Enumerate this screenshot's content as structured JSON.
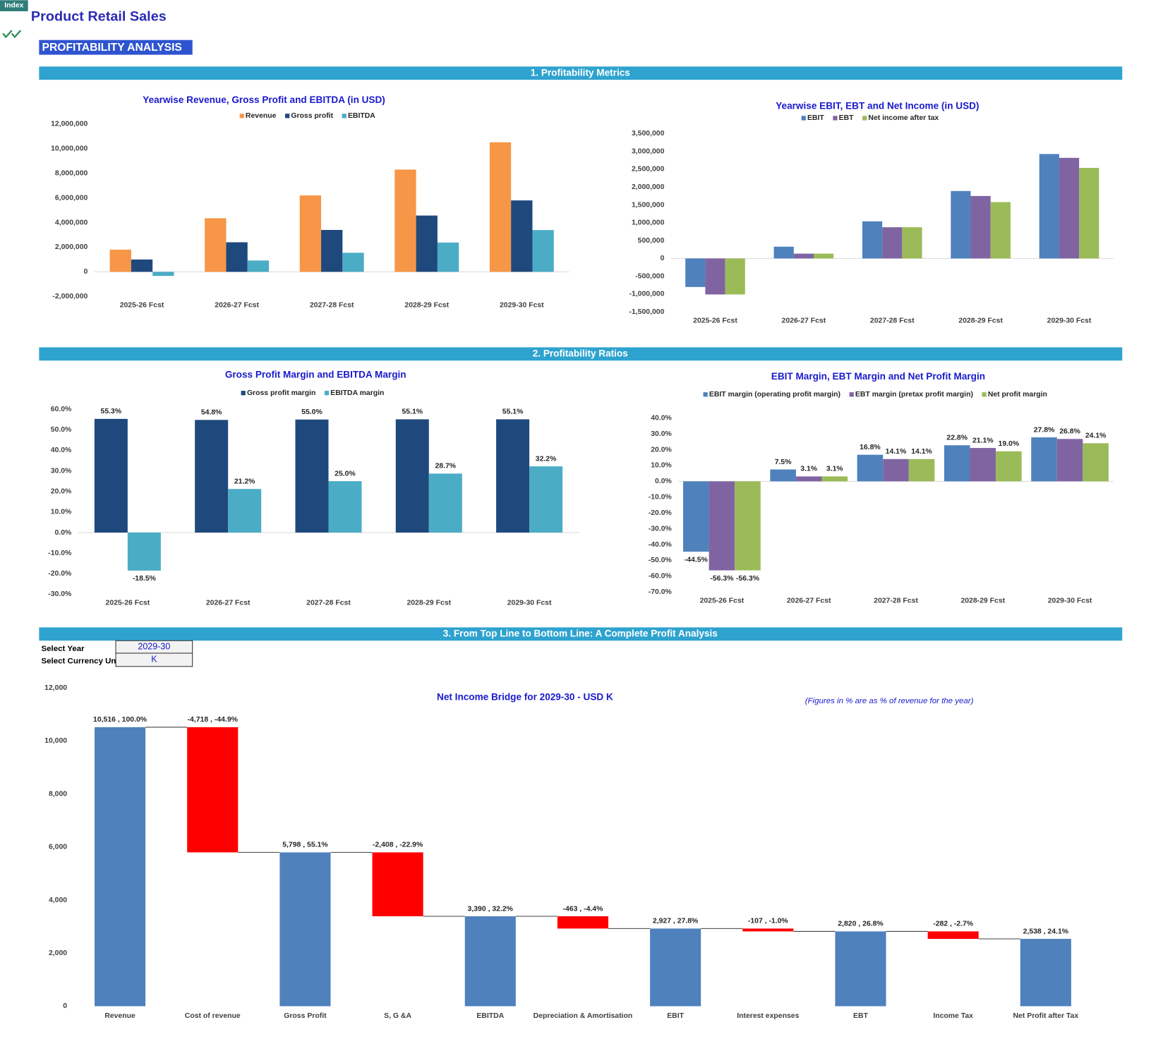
{
  "index_button": "Index",
  "header": {
    "title": "Product Retail Sales",
    "subtitle": "PROFITABILITY ANALYSIS"
  },
  "sections": [
    "1. Profitability Metrics",
    "2. Profitability Ratios",
    "3. From Top Line to Bottom Line: A Complete Profit Analysis"
  ],
  "selectors": [
    {
      "label": "Select Year",
      "value": "2029-30"
    },
    {
      "label": "Select Currency Uni",
      "value": "K"
    }
  ],
  "chart_data": [
    {
      "type": "bar",
      "title": "Yearwise Revenue, Gross Profit and EBITDA (in USD)",
      "legend": "top",
      "categories": [
        "2025-26 Fcst",
        "2026-27 Fcst",
        "2027-28 Fcst",
        "2028-29 Fcst",
        "2029-30 Fcst"
      ],
      "series": [
        {
          "name": "Revenue",
          "color": "#f79646",
          "values": [
            1800000,
            4350000,
            6200000,
            8300000,
            10516000
          ]
        },
        {
          "name": "Gross profit",
          "color": "#1f497d",
          "values": [
            1000000,
            2400000,
            3400000,
            4570000,
            5798000
          ]
        },
        {
          "name": "EBITDA",
          "color": "#4bacc6",
          "values": [
            -330000,
            920000,
            1550000,
            2380000,
            3390000
          ]
        }
      ],
      "ylim": [
        -2000000,
        12000000
      ],
      "yticks": [
        {
          "value": -2000000,
          "label": "-2,000,000"
        },
        0,
        {
          "value": 2000000,
          "label": "2,000,000"
        },
        {
          "value": 4000000,
          "label": "4,000,000"
        },
        {
          "value": 6000000,
          "label": "6,000,000"
        },
        {
          "value": 8000000,
          "label": "8,000,000"
        },
        {
          "value": 10000000,
          "label": "10,000,000"
        },
        {
          "value": 12000000,
          "label": "12,000,000"
        }
      ]
    },
    {
      "type": "bar",
      "title": "Yearwise EBIT, EBT and Net Income (in USD)",
      "legend": "top",
      "categories": [
        "2025-26 Fcst",
        "2026-27 Fcst",
        "2027-28 Fcst",
        "2028-29 Fcst",
        "2029-30 Fcst"
      ],
      "series": [
        {
          "name": "EBIT",
          "color": "#4f81bd",
          "values": [
            -800000,
            330000,
            1040000,
            1890000,
            2927000
          ]
        },
        {
          "name": "EBT",
          "color": "#8064a2",
          "values": [
            -1010000,
            135000,
            875000,
            1750000,
            2820000
          ]
        },
        {
          "name": "Net income after tax",
          "color": "#9bbb59",
          "values": [
            -1010000,
            135000,
            875000,
            1580000,
            2538000
          ]
        }
      ],
      "ylim": [
        -1500000,
        3500000
      ],
      "yticks": [
        {
          "value": -1500000,
          "label": "-1,500,000"
        },
        {
          "value": -1000000,
          "label": "-1,000,000"
        },
        {
          "value": -500000,
          "label": "-500,000"
        },
        0,
        {
          "value": 500000,
          "label": "500,000"
        },
        {
          "value": 1000000,
          "label": "1,000,000"
        },
        {
          "value": 1500000,
          "label": "1,500,000"
        },
        {
          "value": 2000000,
          "label": "2,000,000"
        },
        {
          "value": 2500000,
          "label": "2,500,000"
        },
        {
          "value": 3000000,
          "label": "3,000,000"
        },
        {
          "value": 3500000,
          "label": "3,500,000"
        }
      ]
    },
    {
      "type": "bar",
      "title": "Gross Profit Margin and  EBITDA Margin",
      "legend": "top",
      "categories": [
        "2025-26 Fcst",
        "2026-27 Fcst",
        "2027-28 Fcst",
        "2028-29 Fcst",
        "2029-30 Fcst"
      ],
      "series": [
        {
          "name": "Gross profit margin",
          "color": "#1f497d",
          "values": [
            55.3,
            54.8,
            55.0,
            55.1,
            55.1
          ],
          "value_labels": [
            "55.3%",
            "54.8%",
            "55.0%",
            "55.1%",
            "55.1%"
          ]
        },
        {
          "name": "EBITDA margin",
          "color": "#4bacc6",
          "values": [
            -18.5,
            21.2,
            25.0,
            28.7,
            32.2
          ],
          "value_labels": [
            "-18.5%",
            "21.2%",
            "25.0%",
            "28.7%",
            "32.2%"
          ]
        }
      ],
      "ylim": [
        -30,
        60
      ],
      "yticks": [
        {
          "value": -30,
          "label": "-30.0%"
        },
        {
          "value": -20,
          "label": "-20.0%"
        },
        {
          "value": -10,
          "label": "-10.0%"
        },
        {
          "value": 0,
          "label": "0.0%"
        },
        {
          "value": 10,
          "label": "10.0%"
        },
        {
          "value": 20,
          "label": "20.0%"
        },
        {
          "value": 30,
          "label": "30.0%"
        },
        {
          "value": 40,
          "label": "40.0%"
        },
        {
          "value": 50,
          "label": "50.0%"
        },
        {
          "value": 60,
          "label": "60.0%"
        }
      ]
    },
    {
      "type": "bar",
      "title": "EBIT Margin, EBT Margin and Net Profit Margin",
      "legend": "top",
      "categories": [
        "2025-26 Fcst",
        "2026-27 Fcst",
        "2027-28 Fcst",
        "2028-29 Fcst",
        "2029-30 Fcst"
      ],
      "series": [
        {
          "name": "EBIT margin (operating profit margin)",
          "color": "#4f81bd",
          "values": [
            -44.5,
            7.5,
            16.8,
            22.8,
            27.8
          ],
          "value_labels": [
            "-44.5%",
            "7.5%",
            "16.8%",
            "22.8%",
            "27.8%"
          ]
        },
        {
          "name": "EBT margin (pretax profit margin)",
          "color": "#8064a2",
          "values": [
            -56.3,
            3.1,
            14.1,
            21.1,
            26.8
          ],
          "value_labels": [
            "-56.3%",
            "3.1%",
            "14.1%",
            "21.1%",
            "26.8%"
          ]
        },
        {
          "name": "Net profit margin",
          "color": "#9bbb59",
          "values": [
            -56.3,
            3.1,
            14.1,
            19.0,
            24.1
          ],
          "value_labels": [
            "-56.3%",
            "3.1%",
            "14.1%",
            "19.0%",
            "24.1%"
          ]
        }
      ],
      "ylim": [
        -70,
        40
      ],
      "yticks": [
        {
          "value": -70,
          "label": "-70.0%"
        },
        {
          "value": -60,
          "label": "-60.0%"
        },
        {
          "value": -50,
          "label": "-50.0%"
        },
        {
          "value": -40,
          "label": "-40.0%"
        },
        {
          "value": -30,
          "label": "-30.0%"
        },
        {
          "value": -20,
          "label": "-20.0%"
        },
        {
          "value": -10,
          "label": "-10.0%"
        },
        {
          "value": 0,
          "label": "0.0%"
        },
        {
          "value": 10,
          "label": "10.0%"
        },
        {
          "value": 20,
          "label": "20.0%"
        },
        {
          "value": 30,
          "label": "30.0%"
        },
        {
          "value": 40,
          "label": "40.0%"
        }
      ]
    },
    {
      "type": "waterfall",
      "title": "Net Income Bridge for 2029-30 - USD K",
      "annotation": "(Figures in % are as % of revenue for the year)",
      "categories": [
        "Revenue",
        "Cost of revenue",
        "Gross Profit",
        "S, G &A",
        "EBITDA",
        "Depreciation & Amortisation",
        "EBIT",
        "Interest expenses",
        "EBT",
        "Income Tax",
        "Net Profit after Tax"
      ],
      "values": [
        10516,
        -4718,
        5798,
        -2408,
        3390,
        -463,
        2927,
        -107,
        2820,
        -282,
        2538
      ],
      "value_labels": [
        "10,516 , 100.0%",
        "-4,718 , -44.9%",
        "5,798 , 55.1%",
        "-2,408 , -22.9%",
        "3,390 , 32.2%",
        "-463 , -4.4%",
        "2,927 , 27.8%",
        "-107 , -1.0%",
        "2,820 , 26.8%",
        "-282 , -2.7%",
        "2,538 , 24.1%"
      ],
      "is_total": [
        true,
        false,
        true,
        false,
        true,
        false,
        true,
        false,
        true,
        false,
        true
      ],
      "total_color": "#4f81bd",
      "negative_color": "#ff0000",
      "ylim": [
        0,
        12000
      ],
      "yticks": [
        0,
        {
          "value": 2000,
          "label": "2,000"
        },
        {
          "value": 4000,
          "label": "4,000"
        },
        {
          "value": 6000,
          "label": "6,000"
        },
        {
          "value": 8000,
          "label": "8,000"
        },
        {
          "value": 10000,
          "label": "10,000"
        },
        {
          "value": 12000,
          "label": "12,000"
        }
      ]
    }
  ]
}
